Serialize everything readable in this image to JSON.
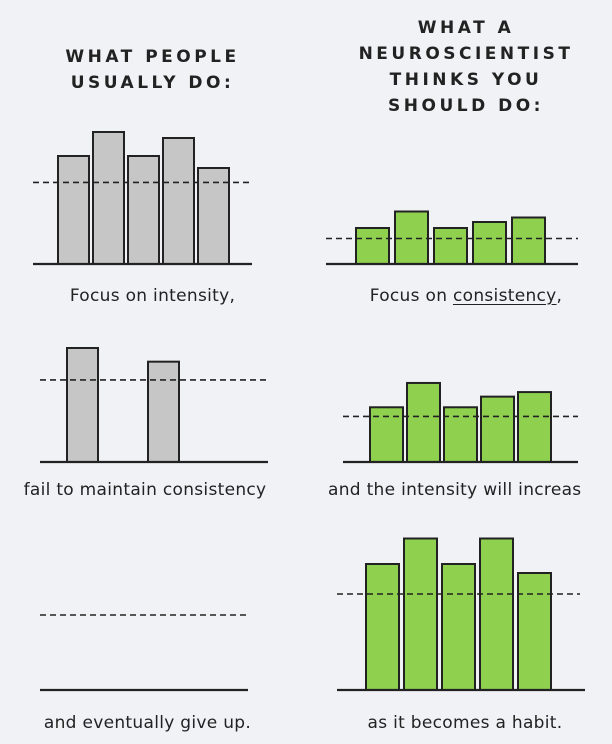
{
  "left_heading": "WHAT PEOPLE\nUSUALLY DO:",
  "right_heading": "WHAT A\nNEUROSCIENTIST\nTHINKS YOU\nSHOULD DO:",
  "colors": {
    "gray_bar": "#c6c6c6",
    "green_bar": "#8fd14f",
    "outline": "#222222"
  },
  "chart_data": [
    {
      "type": "bar",
      "panel": "left-1",
      "values": [
        9,
        11,
        9,
        10.5,
        8
      ],
      "fill": "gray",
      "reference_line": 6.8
    },
    {
      "type": "bar",
      "panel": "right-1",
      "values": [
        2.4,
        3.5,
        2.4,
        2.8,
        3.1
      ],
      "fill": "green",
      "reference_line": 1.7
    },
    {
      "type": "bar",
      "panel": "left-2",
      "values": [
        7.5,
        null,
        null,
        6.6,
        null
      ],
      "fill": "gray",
      "reference_line": 5.4
    },
    {
      "type": "bar",
      "panel": "right-2",
      "values": [
        3.6,
        5.2,
        3.6,
        4.3,
        4.6
      ],
      "fill": "green",
      "reference_line": 3.0
    },
    {
      "type": "bar",
      "panel": "left-3",
      "values": [],
      "fill": "gray",
      "reference_line": 5.0
    },
    {
      "type": "bar",
      "panel": "right-3",
      "values": [
        8.4,
        10.1,
        8.4,
        10.1,
        7.8
      ],
      "fill": "green",
      "reference_line": 6.4
    }
  ],
  "captions": {
    "l1": "Focus on intensity,",
    "r1_prefix": "Focus on ",
    "r1_underlined": "consistency",
    "r1_suffix": ",",
    "l2": "fail to maintain consistency",
    "r2": "and the intensity will increas",
    "l3": "and eventually give up.",
    "r3": "as it becomes a habit."
  }
}
